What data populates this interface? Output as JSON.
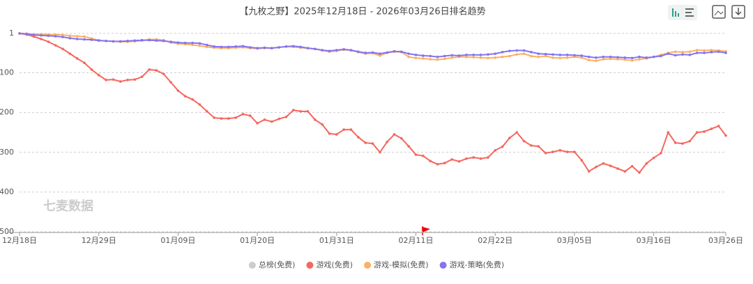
{
  "chart_data": {
    "type": "line",
    "title": "【九枚之野】2025年12月18日 - 2026年03月26日排名趋势",
    "watermark": "七麦数据",
    "categories": [
      "12月18日",
      null,
      null,
      null,
      null,
      null,
      null,
      null,
      null,
      null,
      null,
      "12月29日",
      null,
      null,
      null,
      null,
      null,
      null,
      null,
      null,
      null,
      null,
      "01月09日",
      null,
      null,
      null,
      null,
      null,
      null,
      null,
      null,
      null,
      null,
      "01月20日",
      null,
      null,
      null,
      null,
      null,
      null,
      null,
      null,
      null,
      null,
      "01月31日",
      null,
      null,
      null,
      null,
      null,
      null,
      null,
      null,
      null,
      null,
      "02月11日",
      null,
      null,
      null,
      null,
      null,
      null,
      null,
      null,
      null,
      null,
      "02月22日",
      null,
      null,
      null,
      null,
      null,
      null,
      null,
      null,
      null,
      null,
      "03月05日",
      null,
      null,
      null,
      null,
      null,
      null,
      null,
      null,
      null,
      null,
      "03月16日",
      null,
      null,
      null,
      null,
      null,
      null,
      null,
      null,
      null,
      "03月26日"
    ],
    "ylim": [
      1,
      500
    ],
    "y_inverted": true,
    "yticks": [
      1,
      100,
      200,
      300,
      400,
      500
    ],
    "grid": true,
    "series": [
      {
        "name": "总榜(免费)",
        "color": "#cccccc",
        "visible": false,
        "values": [
          null,
          null,
          null,
          null,
          null,
          null,
          null,
          null,
          null,
          null,
          null,
          null,
          null,
          null,
          null,
          null,
          null,
          null,
          null,
          null,
          null,
          null,
          null,
          null,
          null,
          null,
          null,
          null,
          null,
          null,
          null,
          null,
          null,
          null,
          null,
          null,
          null,
          null,
          null,
          null,
          null,
          null,
          null,
          null,
          null,
          null,
          null,
          null,
          null,
          null,
          null,
          null,
          null,
          null,
          null,
          null,
          null,
          null,
          null,
          null,
          null,
          null,
          null,
          null,
          null,
          null,
          null,
          null,
          null,
          null,
          null,
          null,
          null,
          null,
          null,
          null,
          null,
          null,
          null,
          null,
          null,
          null,
          null,
          null,
          null,
          null,
          null,
          null,
          null,
          null,
          null,
          null,
          null,
          null,
          null,
          null,
          null,
          null,
          null
        ]
      },
      {
        "name": "游戏(免费)",
        "color": "#f4675f",
        "visible": true,
        "values": [
          1,
          4,
          9,
          15,
          22,
          31,
          40,
          52,
          64,
          75,
          92,
          106,
          118,
          117,
          122,
          118,
          117,
          110,
          92,
          94,
          103,
          124,
          145,
          159,
          167,
          180,
          197,
          213,
          215,
          215,
          213,
          204,
          208,
          227,
          218,
          223,
          216,
          211,
          194,
          197,
          197,
          218,
          230,
          253,
          255,
          243,
          243,
          262,
          276,
          278,
          300,
          274,
          255,
          265,
          285,
          306,
          309,
          322,
          330,
          327,
          318,
          323,
          316,
          313,
          316,
          313,
          295,
          286,
          264,
          250,
          272,
          283,
          285,
          302,
          299,
          295,
          299,
          299,
          320,
          348,
          337,
          328,
          334,
          341,
          348,
          335,
          351,
          328,
          314,
          302,
          250,
          276,
          278,
          272,
          250,
          248,
          241,
          234,
          258
        ]
      },
      {
        "name": "游戏-模拟(免费)",
        "color": "#fbb162",
        "visible": true,
        "values": [
          1,
          2,
          3,
          3,
          4,
          4,
          5,
          7,
          8,
          9,
          14,
          18,
          20,
          21,
          22,
          22,
          21,
          19,
          16,
          16,
          18,
          24,
          27,
          28,
          30,
          32,
          35,
          37,
          38,
          38,
          37,
          36,
          38,
          39,
          38,
          38,
          36,
          34,
          35,
          37,
          38,
          40,
          44,
          47,
          45,
          42,
          44,
          48,
          52,
          51,
          57,
          50,
          47,
          48,
          60,
          63,
          64,
          66,
          67,
          65,
          62,
          60,
          60,
          61,
          62,
          63,
          62,
          60,
          58,
          54,
          52,
          58,
          60,
          58,
          62,
          63,
          62,
          60,
          62,
          68,
          70,
          66,
          65,
          66,
          67,
          69,
          66,
          64,
          60,
          55,
          50,
          47,
          48,
          47,
          43,
          44,
          43,
          44,
          46
        ]
      },
      {
        "name": "游戏-策略(免费)",
        "color": "#8573f2",
        "visible": true,
        "values": [
          1,
          2,
          5,
          6,
          7,
          8,
          10,
          13,
          15,
          16,
          17,
          19,
          20,
          21,
          21,
          20,
          19,
          18,
          18,
          19,
          20,
          22,
          24,
          25,
          25,
          26,
          30,
          34,
          35,
          35,
          34,
          33,
          36,
          38,
          37,
          38,
          36,
          34,
          33,
          35,
          38,
          40,
          43,
          45,
          43,
          41,
          43,
          47,
          50,
          49,
          52,
          49,
          46,
          47,
          52,
          55,
          57,
          58,
          60,
          58,
          56,
          57,
          55,
          55,
          55,
          54,
          52,
          48,
          45,
          44,
          44,
          48,
          52,
          53,
          54,
          55,
          55,
          56,
          57,
          60,
          62,
          60,
          60,
          61,
          62,
          63,
          60,
          62,
          60,
          58,
          52,
          56,
          54,
          55,
          50,
          50,
          48,
          47,
          50
        ]
      }
    ]
  }
}
